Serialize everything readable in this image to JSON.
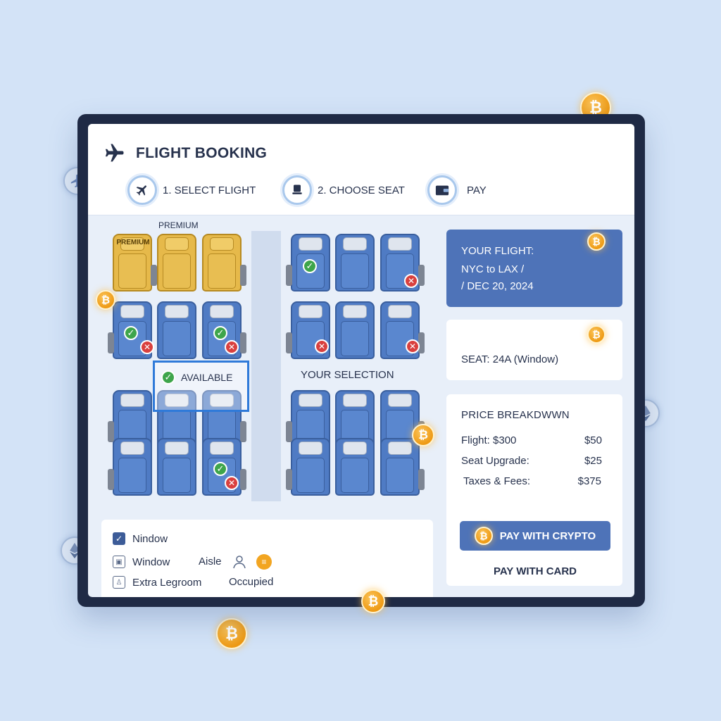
{
  "app": {
    "title": "FLIGHT BOOKING"
  },
  "steps": [
    {
      "label": "1. SELECT FLIGHT",
      "icon": "plane-icon"
    },
    {
      "label": "2. CHOOSE SEAT",
      "icon": "seat-icon"
    },
    {
      "label": "PAY",
      "icon": "wallet-icon"
    }
  ],
  "seatmap": {
    "section_label": "PREMIUM",
    "premium_seat_text": "PREMIUM",
    "available_label": "AVAILABLE",
    "your_selection_label": "YOUR SELECTION",
    "check_glyph": "✓",
    "cross_glyph": "✕"
  },
  "legend": {
    "window_checkbox": "Nindow",
    "window": "Window",
    "aisle": "Aisle",
    "extra_legroom": "Extra Legroom",
    "occupied": "Occupied"
  },
  "flight": {
    "heading": "YOUR FLIGHT:",
    "route": "NYC to LAX /",
    "date": "/ DEC 20, 2024"
  },
  "seat_info": {
    "text": "SEAT: 24A (Window)"
  },
  "price": {
    "heading": "PRICE BREAKDWWN",
    "rows": [
      {
        "label": "Flight: $300",
        "value": "$50"
      },
      {
        "label": "Seat Upgrade:",
        "value": "$25"
      },
      {
        "label": "Taxes & Fees:",
        "value": "$375"
      }
    ],
    "pay_crypto": "PAY WITH CRYPTO",
    "pay_card": "PAY WITH CARD"
  },
  "coin_glyph": "₿",
  "colors": {
    "accent": "#4e73b8",
    "premium": "#e6b94a",
    "seat": "#4f7bc4",
    "available": "#3ea54b",
    "occupied": "#d9403e",
    "coin": "#f2a521"
  }
}
